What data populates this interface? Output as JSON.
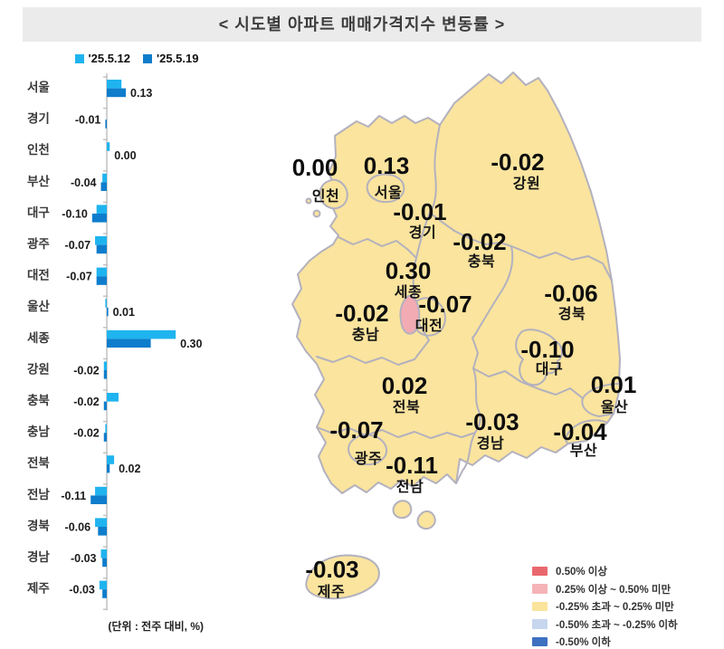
{
  "title": "< 시도별 아파트 매매가격지수 변동률 >",
  "unit_note": "(단위 : 전주 대비, %)",
  "chart_data": {
    "type": "bar",
    "orientation": "horizontal",
    "title": "시도별 아파트 매매가격지수 변동률",
    "categories": [
      "서울",
      "경기",
      "인천",
      "부산",
      "대구",
      "광주",
      "대전",
      "울산",
      "세종",
      "강원",
      "충북",
      "충남",
      "전북",
      "전남",
      "경북",
      "경남",
      "제주"
    ],
    "series": [
      {
        "name": "'25.5.12",
        "color": "#1fb4ef",
        "values": [
          0.1,
          0.0,
          0.02,
          -0.03,
          -0.07,
          -0.08,
          -0.07,
          -0.01,
          0.47,
          -0.02,
          0.08,
          -0.01,
          0.05,
          -0.08,
          -0.08,
          -0.04,
          -0.05
        ]
      },
      {
        "name": "'25.5.19",
        "color": "#0e7dcc",
        "values": [
          0.13,
          -0.01,
          0.0,
          -0.04,
          -0.1,
          -0.07,
          -0.07,
          0.01,
          0.3,
          -0.02,
          -0.02,
          -0.02,
          0.02,
          -0.11,
          -0.06,
          -0.03,
          -0.03
        ]
      }
    ],
    "value_labels": [
      "0.13",
      "-0.01",
      "0.00",
      "-0.04",
      "-0.10",
      "-0.07",
      "-0.07",
      "0.01",
      "0.30",
      "-0.02",
      "-0.02",
      "-0.02",
      "0.02",
      "-0.11",
      "-0.06",
      "-0.03",
      "-0.03"
    ],
    "xlim": [
      -0.2,
      0.55
    ],
    "unit": "전주 대비, %"
  },
  "map": {
    "base_fill": "#fae49e",
    "border_color": "#b3b1be",
    "regions": [
      {
        "id": "seoul",
        "name": "서울",
        "value": "0.13",
        "fill": "#fae49e"
      },
      {
        "id": "gyeonggi",
        "name": "경기",
        "value": "-0.01",
        "fill": "#fae49e"
      },
      {
        "id": "incheon",
        "name": "인천",
        "value": "0.00",
        "fill": "#fae49e"
      },
      {
        "id": "busan",
        "name": "부산",
        "value": "-0.04",
        "fill": "#fae49e"
      },
      {
        "id": "daegu",
        "name": "대구",
        "value": "-0.10",
        "fill": "#fae49e"
      },
      {
        "id": "gwangju",
        "name": "광주",
        "value": "-0.07",
        "fill": "#fae49e"
      },
      {
        "id": "daejeon",
        "name": "대전",
        "value": "-0.07",
        "fill": "#fae49e"
      },
      {
        "id": "ulsan",
        "name": "울산",
        "value": "0.01",
        "fill": "#fae49e"
      },
      {
        "id": "sejong",
        "name": "세종",
        "value": "0.30",
        "fill": "#f2abb3"
      },
      {
        "id": "gangwon",
        "name": "강원",
        "value": "-0.02",
        "fill": "#fae49e"
      },
      {
        "id": "chungbuk",
        "name": "충북",
        "value": "-0.02",
        "fill": "#fae49e"
      },
      {
        "id": "chungnam",
        "name": "충남",
        "value": "-0.02",
        "fill": "#fae49e"
      },
      {
        "id": "jeonbuk",
        "name": "전북",
        "value": "0.02",
        "fill": "#fae49e"
      },
      {
        "id": "jeonnam",
        "name": "전남",
        "value": "-0.11",
        "fill": "#fae49e"
      },
      {
        "id": "gyeongbuk",
        "name": "경북",
        "value": "-0.06",
        "fill": "#fae49e"
      },
      {
        "id": "gyeongnam",
        "name": "경남",
        "value": "-0.03",
        "fill": "#fae49e"
      },
      {
        "id": "jeju",
        "name": "제주",
        "value": "-0.03",
        "fill": "#fae49e"
      }
    ],
    "legend": [
      {
        "label": "0.50% 이상",
        "color": "#e9686e"
      },
      {
        "label": "0.25% 이상 ~ 0.50% 미만",
        "color": "#f5b3b8"
      },
      {
        "label": "-0.25% 초과 ~ 0.25% 미만",
        "color": "#fae49c"
      },
      {
        "label": "-0.50% 초과 ~ -0.25% 이하",
        "color": "#c7d6ee"
      },
      {
        "label": "-0.50% 이하",
        "color": "#3e70c0"
      }
    ]
  }
}
